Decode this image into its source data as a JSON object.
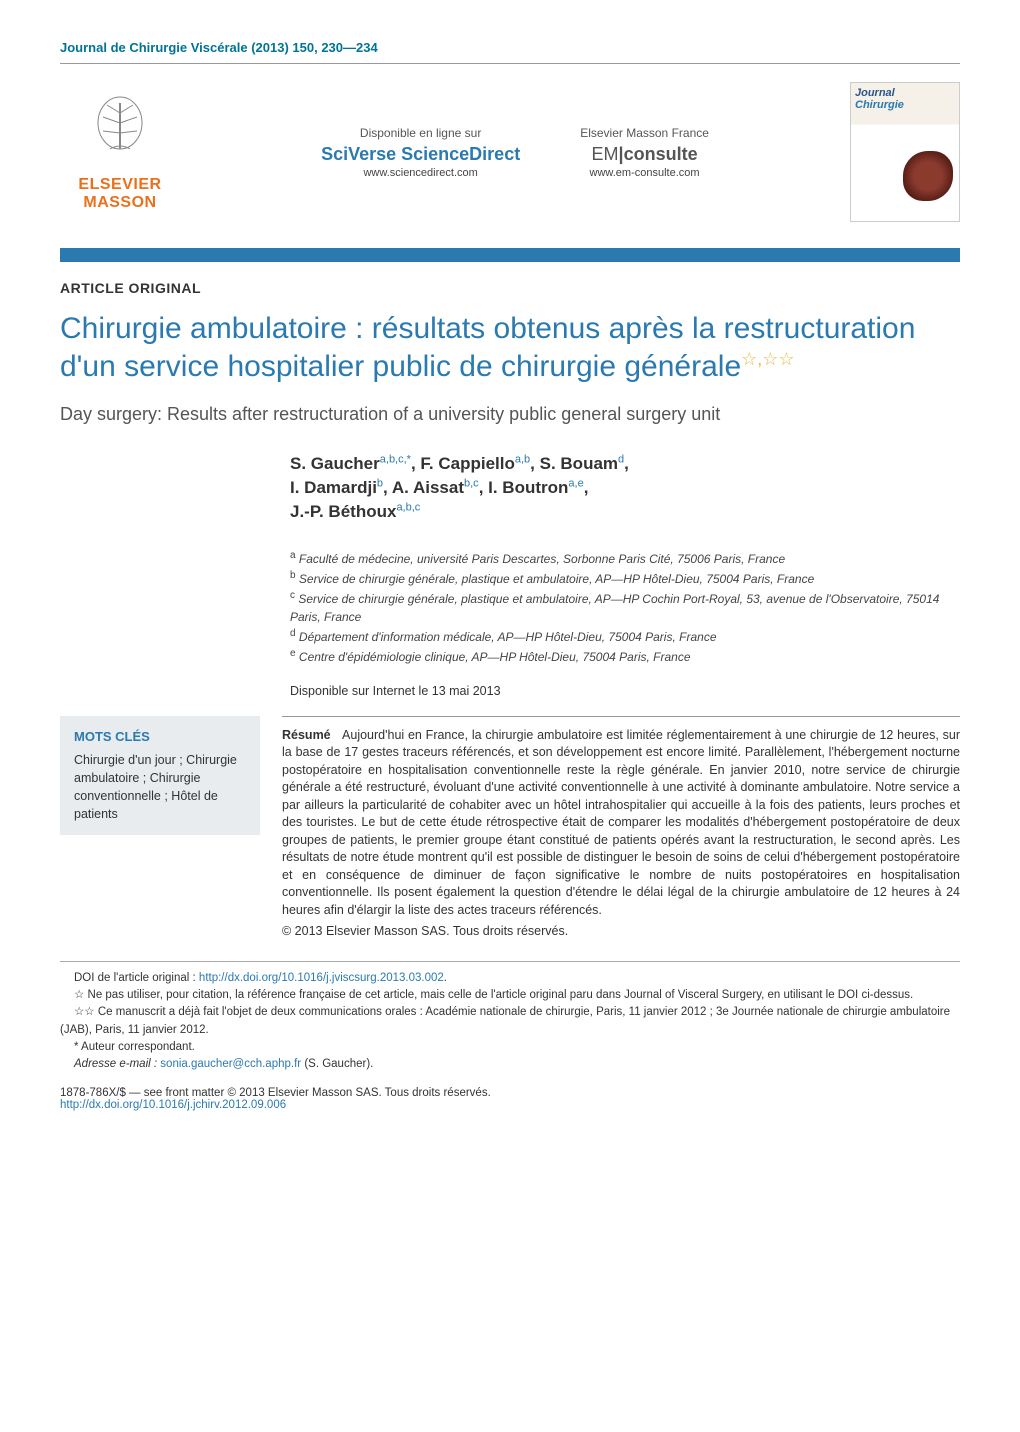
{
  "journal_ref": "Journal de Chirurgie Viscérale (2013) 150, 230—234",
  "header": {
    "publisher_name": "ELSEVIER MASSON",
    "source1": {
      "label": "Disponible en ligne sur",
      "brand": "SciVerse ScienceDirect",
      "url": "www.sciencedirect.com"
    },
    "source2": {
      "label": "Elsevier Masson France",
      "brand_pre": "EM",
      "brand_post": "consulte",
      "url": "www.em-consulte.com"
    },
    "cover_title": "Journal",
    "cover_subtitle": "Chirurgie"
  },
  "article_type": "ARTICLE ORIGINAL",
  "title": "Chirurgie ambulatoire : résultats obtenus après la restructuration d'un service hospitalier public de chirurgie générale",
  "title_note_marks": "☆,☆☆",
  "subtitle": "Day surgery: Results after restructuration of a university public general surgery unit",
  "authors": [
    {
      "name": "S. Gaucher",
      "sup": "a,b,c,*"
    },
    {
      "name": "F. Cappiello",
      "sup": "a,b"
    },
    {
      "name": "S. Bouam",
      "sup": "d"
    },
    {
      "name": "I. Damardji",
      "sup": "b"
    },
    {
      "name": "A. Aissat",
      "sup": "b,c"
    },
    {
      "name": "I. Boutron",
      "sup": "a,e"
    },
    {
      "name": "J.-P. Béthoux",
      "sup": "a,b,c"
    }
  ],
  "affiliations": [
    {
      "key": "a",
      "text": "Faculté de médecine, université Paris Descartes, Sorbonne Paris Cité, 75006 Paris, France"
    },
    {
      "key": "b",
      "text": "Service de chirurgie générale, plastique et ambulatoire, AP—HP Hôtel-Dieu, 75004 Paris, France"
    },
    {
      "key": "c",
      "text": "Service de chirurgie générale, plastique et ambulatoire, AP—HP Cochin Port-Royal, 53, avenue de l'Observatoire, 75014 Paris, France"
    },
    {
      "key": "d",
      "text": "Département d'information médicale, AP—HP Hôtel-Dieu, 75004 Paris, France"
    },
    {
      "key": "e",
      "text": "Centre d'épidémiologie clinique, AP—HP Hôtel-Dieu, 75004 Paris, France"
    }
  ],
  "available_online": "Disponible sur Internet le 13 mai 2013",
  "keywords": {
    "heading": "MOTS CLÉS",
    "items": "Chirurgie d'un jour ; Chirurgie ambulatoire ; Chirurgie conventionnelle ; Hôtel de patients"
  },
  "abstract": {
    "heading": "Résumé",
    "body": "Aujourd'hui en France, la chirurgie ambulatoire est limitée réglementairement à une chirurgie de 12 heures, sur la base de 17 gestes traceurs référencés, et son développement est encore limité. Parallèlement, l'hébergement nocturne postopératoire en hospitalisation conventionnelle reste la règle générale. En janvier 2010, notre service de chirurgie générale a été restructuré, évoluant d'une activité conventionnelle à une activité à dominante ambulatoire. Notre service a par ailleurs la particularité de cohabiter avec un hôtel intrahospitalier qui accueille à la fois des patients, leurs proches et des touristes. Le but de cette étude rétrospective était de comparer les modalités d'hébergement postopératoire de deux groupes de patients, le premier groupe étant constitué de patients opérés avant la restructuration, le second après. Les résultats de notre étude montrent qu'il est possible de distinguer le besoin de soins de celui d'hébergement postopératoire et en conséquence de diminuer de façon significative le nombre de nuits postopératoires en hospitalisation conventionnelle. Ils posent également la question d'étendre le délai légal de la chirurgie ambulatoire de 12 heures à 24 heures afin d'élargir la liste des actes traceurs référencés.",
    "copyright": "© 2013 Elsevier Masson SAS. Tous droits réservés."
  },
  "footnotes": {
    "doi_label": "DOI de l'article original :",
    "doi_url": "http://dx.doi.org/10.1016/j.jviscsurg.2013.03.002",
    "star1": "Ne pas utiliser, pour citation, la référence française de cet article, mais celle de l'article original paru dans Journal of Visceral Surgery, en utilisant le DOI ci-dessus.",
    "star2": "Ce manuscrit a déjà fait l'objet de deux communications orales : Académie nationale de chirurgie, Paris, 11 janvier 2012 ; 3e Journée nationale de chirurgie ambulatoire (JAB), Paris, 11 janvier 2012.",
    "corresp": "Auteur correspondant.",
    "email_label": "Adresse e-mail :",
    "email": "sonia.gaucher@cch.aphp.fr",
    "email_who": "(S. Gaucher)."
  },
  "footer": {
    "issn_line": "1878-786X/$ — see front matter © 2013 Elsevier Masson SAS. Tous droits réservés.",
    "doi": "http://dx.doi.org/10.1016/j.jchirv.2012.09.006"
  }
}
